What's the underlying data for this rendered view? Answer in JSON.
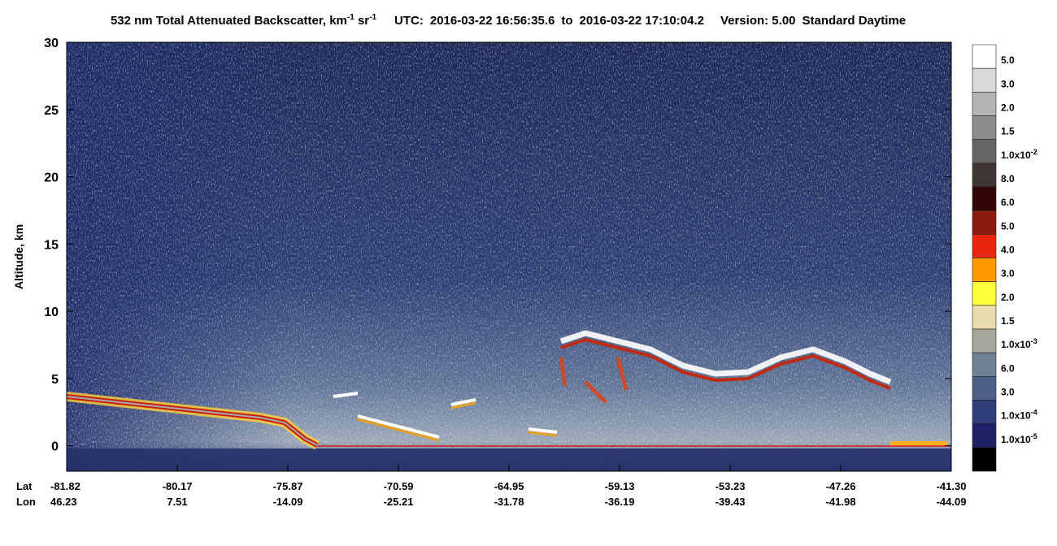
{
  "chart_data": {
    "type": "curtain",
    "title": {
      "product": "532 nm Total Attenuated Backscatter, km",
      "unit_exp1": "-1",
      "unit_sr": "sr",
      "unit_exp2": "-1",
      "utc_label": "UTC:",
      "start": "2016-03-22 16:56:35.6",
      "to": "to",
      "end": "2016-03-22 17:10:04.2",
      "version": "Version: 5.00",
      "mode": "Standard  Daytime"
    },
    "y_label": "Altitude, km",
    "ylim": [
      -1.9,
      30
    ],
    "yticks": [
      0,
      5,
      10,
      15,
      20,
      25,
      30
    ],
    "x_row_labels": [
      "Lat",
      "Lon"
    ],
    "lat": [
      "-81.82",
      "-80.17",
      "-75.87",
      "-70.59",
      "-64.95",
      "-59.13",
      "-53.23",
      "-47.26",
      "-41.30"
    ],
    "lon": [
      "46.23",
      "7.51",
      "-14.09",
      "-25.21",
      "-31.78",
      "-36.19",
      "-39.43",
      "-41.98",
      "-44.09"
    ],
    "colorbar": {
      "colors": [
        "#ffffff",
        "#d9d9d9",
        "#b3b3b3",
        "#8c8c8c",
        "#666666",
        "#3f3634",
        "#330505",
        "#8b1a10",
        "#e8260e",
        "#ff9a00",
        "#ffff3c",
        "#eadcae",
        "#a6a69b",
        "#6e8195",
        "#4f6088",
        "#2f3e7a",
        "#1e2165",
        "#000000"
      ],
      "labels": [
        "5.0",
        "3.0",
        "2.0",
        "1.5",
        {
          "text": "1.0x10",
          "sup": "-2"
        },
        "8.0",
        "6.0",
        "5.0",
        "4.0",
        "3.0",
        "2.0",
        "1.5",
        {
          "text": "1.0x10",
          "sup": "-3"
        },
        "6.0",
        "3.0",
        {
          "text": "1.0x10",
          "sup": "-4"
        },
        {
          "text": "1.0x10",
          "sup": "-5"
        }
      ]
    }
  }
}
